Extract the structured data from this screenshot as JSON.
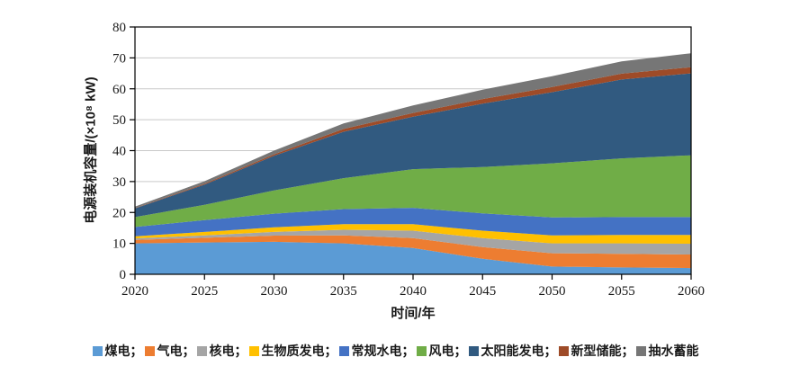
{
  "page": {
    "background": "#ffffff",
    "text_color": "#1a1a1a"
  },
  "chart_data": {
    "type": "area",
    "stacked": true,
    "title": "",
    "xlabel": "时间/年",
    "ylabel": "电源装机容量/(×10⁸ kW)",
    "grid": "horizontal",
    "gridline_color": "#c9c9c9",
    "axis_color": "#000000",
    "legend_position": "bottom",
    "legend_separator": "；",
    "xlim": [
      2020,
      2060
    ],
    "ylim": [
      0,
      80
    ],
    "x": [
      2020,
      2025,
      2030,
      2035,
      2040,
      2045,
      2050,
      2055,
      2060
    ],
    "x_tick_labels": [
      "2020",
      "2025",
      "2030",
      "2035",
      "2040",
      "2045",
      "2050",
      "2055",
      "2060"
    ],
    "y_ticks": [
      0,
      10,
      20,
      30,
      40,
      50,
      60,
      70,
      80
    ],
    "series": [
      {
        "name": "煤电",
        "color": "#5B9BD5",
        "values": [
          10.0,
          10.3,
          10.5,
          10.0,
          8.5,
          5.0,
          2.5,
          2.2,
          2.0
        ]
      },
      {
        "name": "气电",
        "color": "#ED7D31",
        "values": [
          1.1,
          1.5,
          2.0,
          2.6,
          3.2,
          3.8,
          4.3,
          4.4,
          4.4
        ]
      },
      {
        "name": "核电",
        "color": "#A5A5A5",
        "values": [
          0.5,
          0.8,
          1.2,
          1.8,
          2.4,
          2.9,
          3.2,
          3.4,
          3.5
        ]
      },
      {
        "name": "生物质发电",
        "color": "#FFC000",
        "values": [
          0.7,
          1.1,
          1.5,
          1.8,
          2.1,
          2.4,
          2.6,
          2.7,
          2.8
        ]
      },
      {
        "name": "常规水电",
        "color": "#4472C4",
        "values": [
          3.0,
          3.8,
          4.4,
          4.9,
          5.3,
          5.6,
          5.8,
          5.8,
          5.8
        ]
      },
      {
        "name": "风电",
        "color": "#70AD47",
        "values": [
          3.2,
          5.0,
          7.5,
          10.0,
          12.5,
          15.0,
          17.5,
          19.0,
          20.0
        ]
      },
      {
        "name": "太阳能发电",
        "color": "#315A80",
        "values": [
          2.8,
          6.5,
          11.2,
          15.0,
          17.0,
          20.5,
          23.0,
          25.5,
          26.5
        ]
      },
      {
        "name": "新型储能",
        "color": "#9E4B28",
        "values": [
          0.1,
          0.3,
          0.5,
          0.9,
          1.2,
          1.5,
          1.7,
          1.9,
          2.0
        ]
      },
      {
        "name": "抽水蓄能",
        "color": "#767676",
        "values": [
          0.5,
          0.8,
          1.2,
          1.8,
          2.4,
          3.0,
          3.5,
          4.0,
          4.5
        ]
      }
    ]
  }
}
